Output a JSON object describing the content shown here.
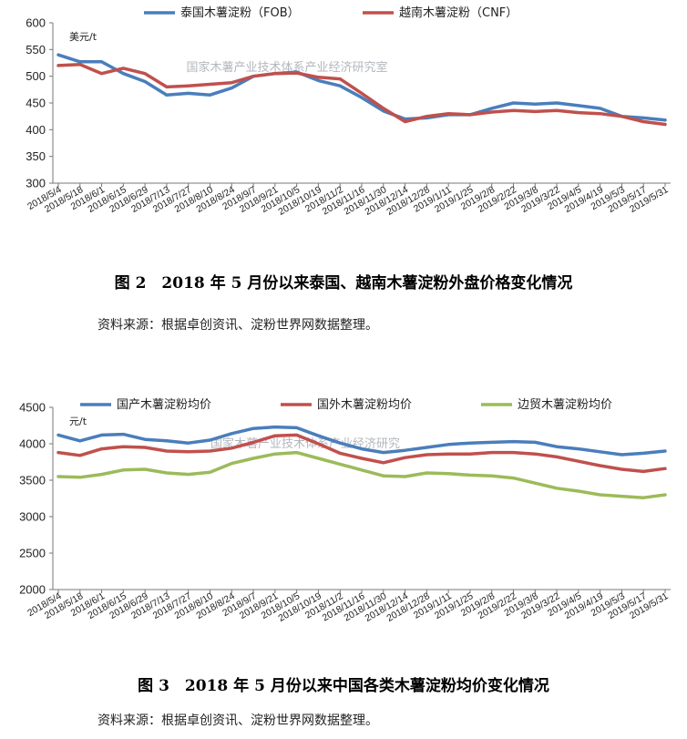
{
  "figure1": {
    "caption": "图 2　2018 年 5 月份以来泰国、越南木薯淀粉外盘价格变化情况",
    "source": "资料来源：根据卓创资讯、淀粉世界网数据整理。"
  },
  "figure2": {
    "caption": "图 3　2018 年 5 月份以来中国各类木薯淀粉均价变化情况",
    "source": "资料来源：根据卓创资讯、淀粉世界网数据整理。"
  },
  "chart_data": [
    {
      "type": "line",
      "title": "",
      "ylabel": "美元/t",
      "xlabel": "",
      "ylim": [
        300,
        600
      ],
      "yticks": [
        300,
        350,
        400,
        450,
        500,
        550,
        600
      ],
      "grid": false,
      "legend": "top",
      "watermark": "国家木薯产业技术体系产业经济研究室",
      "categories": [
        "2018/5/4",
        "2018/5/18",
        "2018/6/1",
        "2018/6/15",
        "2018/6/29",
        "2018/7/13",
        "2018/7/27",
        "2018/8/10",
        "2018/8/24",
        "2018/9/7",
        "2018/9/21",
        "2018/10/5",
        "2018/10/19",
        "2018/11/2",
        "2018/11/16",
        "2018/11/30",
        "2018/12/14",
        "2018/12/28",
        "2019/1/11",
        "2019/1/25",
        "2019/2/8",
        "2019/2/22",
        "2019/3/8",
        "2019/3/22",
        "2019/4/5",
        "2019/4/19",
        "2019/5/3",
        "2019/5/17",
        "2019/5/31"
      ],
      "series": [
        {
          "name": "泰国木薯淀粉（FOB）",
          "color": "#4a7ebb",
          "values": [
            540,
            527,
            527,
            505,
            490,
            465,
            468,
            465,
            478,
            500,
            505,
            508,
            492,
            482,
            460,
            435,
            420,
            422,
            428,
            428,
            440,
            450,
            448,
            450,
            445,
            440,
            425,
            422,
            418
          ]
        },
        {
          "name": "越南木薯淀粉（CNF）",
          "color": "#c0504d",
          "values": [
            520,
            522,
            505,
            515,
            505,
            480,
            482,
            485,
            488,
            500,
            505,
            506,
            498,
            495,
            468,
            440,
            415,
            425,
            430,
            428,
            433,
            436,
            434,
            436,
            432,
            430,
            425,
            415,
            410
          ]
        }
      ]
    },
    {
      "type": "line",
      "title": "",
      "ylabel": "元/t",
      "xlabel": "",
      "ylim": [
        2000,
        4500
      ],
      "yticks": [
        2000,
        2500,
        3000,
        3500,
        4000,
        4500
      ],
      "grid": false,
      "legend": "top",
      "watermark": "国家木薯产业技术体系产业经济研究",
      "categories": [
        "2018/5/4",
        "2018/5/18",
        "2018/6/1",
        "2018/6/15",
        "2018/6/29",
        "2018/7/13",
        "2018/7/27",
        "2018/8/10",
        "2018/8/24",
        "2018/9/7",
        "2018/9/21",
        "2018/10/5",
        "2018/10/19",
        "2018/11/2",
        "2018/11/16",
        "2018/11/30",
        "2018/12/14",
        "2018/12/28",
        "2019/1/11",
        "2019/1/25",
        "2019/2/8",
        "2019/2/22",
        "2019/3/8",
        "2019/3/22",
        "2019/4/5",
        "2019/4/19",
        "2019/5/3",
        "2019/5/17",
        "2019/5/31"
      ],
      "series": [
        {
          "name": "国产木薯淀粉均价",
          "color": "#4a7ebb",
          "values": [
            4120,
            4040,
            4120,
            4130,
            4060,
            4040,
            4010,
            4050,
            4140,
            4210,
            4230,
            4220,
            4110,
            4010,
            3930,
            3880,
            3910,
            3950,
            3990,
            4010,
            4020,
            4030,
            4020,
            3960,
            3930,
            3890,
            3850,
            3870,
            3900
          ]
        },
        {
          "name": "国外木薯淀粉均价",
          "color": "#c0504d",
          "values": [
            3880,
            3840,
            3930,
            3960,
            3950,
            3900,
            3890,
            3900,
            3940,
            4020,
            4110,
            4120,
            4000,
            3870,
            3800,
            3740,
            3810,
            3850,
            3860,
            3860,
            3880,
            3880,
            3860,
            3820,
            3760,
            3700,
            3650,
            3620,
            3660
          ]
        },
        {
          "name": "边贸木薯淀粉均价",
          "color": "#9bbb59",
          "values": [
            3550,
            3540,
            3580,
            3640,
            3650,
            3600,
            3580,
            3610,
            3730,
            3800,
            3860,
            3880,
            3800,
            3720,
            3640,
            3560,
            3550,
            3600,
            3590,
            3570,
            3560,
            3530,
            3460,
            3390,
            3350,
            3300,
            3280,
            3260,
            3300
          ]
        }
      ]
    }
  ]
}
